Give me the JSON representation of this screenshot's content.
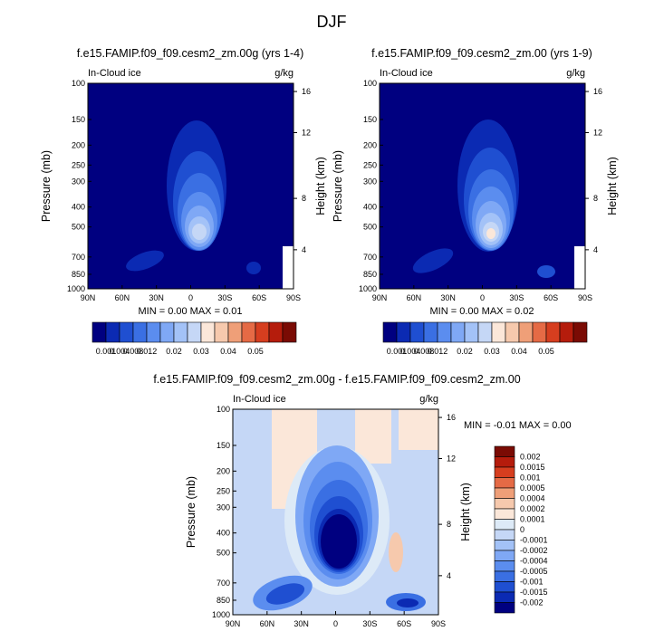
{
  "figure": {
    "title": "DJF"
  },
  "colors": {
    "levels": [
      "#000080",
      "#0b2ab3",
      "#1f4fd1",
      "#3a6fe3",
      "#5b8def",
      "#7fa8f5",
      "#a3c2f7",
      "#c5d7f6",
      "#fbe7d9",
      "#f6c9ad",
      "#ef9f78",
      "#e56a45",
      "#d63e1f",
      "#b51c0c",
      "#7a0b04"
    ],
    "diff_levels": [
      "#000080",
      "#0b2ab3",
      "#1f4fd1",
      "#3a6fe3",
      "#5b8def",
      "#7fa8f5",
      "#a3c2f7",
      "#c5d7f6",
      "#ddeaf7",
      "#fbe7d9",
      "#f6c9ad",
      "#ef9f78",
      "#e56a45",
      "#d63e1f",
      "#b51c0c",
      "#7a0b04"
    ]
  },
  "chart_data": [
    {
      "type": "heatmap",
      "title": "f.e15.FAMIP.f09_f09.cesm2_zm.00g (yrs 1-4)",
      "left_label": "In-Cloud ice",
      "right_label": "g/kg",
      "xlabel": "",
      "ylabel": "Pressure (mb)",
      "ylabel_right": "Height (km)",
      "x_ticks": [
        "90N",
        "60N",
        "30N",
        "0",
        "30S",
        "60S",
        "90S"
      ],
      "y_ticks": [
        "100",
        "150",
        "200",
        "250",
        "300",
        "400",
        "500",
        "700",
        "850",
        "1000"
      ],
      "y_right_ticks": [
        "16",
        "12",
        "8",
        "4"
      ],
      "ylim": [
        1000,
        100
      ],
      "y_scale": "log",
      "stats": {
        "min_label": "MIN =",
        "min": "0.00",
        "max_label": "MAX =",
        "max": "0.01"
      },
      "legend": {
        "type": "colorbar",
        "placement": "bottom",
        "labels": [
          "0.001",
          "0.004",
          "0.008",
          "0.012",
          "0.02",
          "0.03",
          "0.04",
          "0.05"
        ]
      },
      "peak_level_index": 7
    },
    {
      "type": "heatmap",
      "title": "f.e15.FAMIP.f09_f09.cesm2_zm.00 (yrs 1-9)",
      "left_label": "In-Cloud ice",
      "right_label": "g/kg",
      "xlabel": "",
      "ylabel": "Pressure (mb)",
      "ylabel_right": "Height (km)",
      "x_ticks": [
        "90N",
        "60N",
        "30N",
        "0",
        "30S",
        "60S",
        "90S"
      ],
      "y_ticks": [
        "100",
        "150",
        "200",
        "250",
        "300",
        "400",
        "500",
        "700",
        "850",
        "1000"
      ],
      "y_right_ticks": [
        "16",
        "12",
        "8",
        "4"
      ],
      "ylim": [
        1000,
        100
      ],
      "y_scale": "log",
      "stats": {
        "min_label": "MIN =",
        "min": "0.00",
        "max_label": "MAX =",
        "max": "0.02"
      },
      "legend": {
        "type": "colorbar",
        "placement": "bottom",
        "labels": [
          "0.001",
          "0.004",
          "0.008",
          "0.012",
          "0.02",
          "0.03",
          "0.04",
          "0.05"
        ]
      },
      "peak_level_index": 8
    },
    {
      "type": "heatmap",
      "title": "f.e15.FAMIP.f09_f09.cesm2_zm.00g - f.e15.FAMIP.f09_f09.cesm2_zm.00",
      "left_label": "In-Cloud ice",
      "right_label": "g/kg",
      "xlabel": "",
      "ylabel": "Pressure (mb)",
      "ylabel_right": "Height (km)",
      "x_ticks": [
        "90N",
        "60N",
        "30N",
        "0",
        "30S",
        "60S",
        "90S"
      ],
      "y_ticks": [
        "100",
        "150",
        "200",
        "250",
        "300",
        "400",
        "500",
        "700",
        "850",
        "1000"
      ],
      "y_right_ticks": [
        "16",
        "12",
        "8",
        "4"
      ],
      "ylim": [
        1000,
        100
      ],
      "y_scale": "log",
      "stats": {
        "min_label": "MIN =",
        "min": "-0.01",
        "max_label": "MAX =",
        "max": "0.00"
      },
      "legend": {
        "type": "colorbar",
        "placement": "right",
        "labels": [
          "0.002",
          "0.0015",
          "0.001",
          "0.0005",
          "0.0004",
          "0.0002",
          "0.0001",
          "0",
          "-0.0001",
          "-0.0002",
          "-0.0004",
          "-0.0005",
          "-0.001",
          "-0.0015",
          "-0.002"
        ]
      }
    }
  ]
}
